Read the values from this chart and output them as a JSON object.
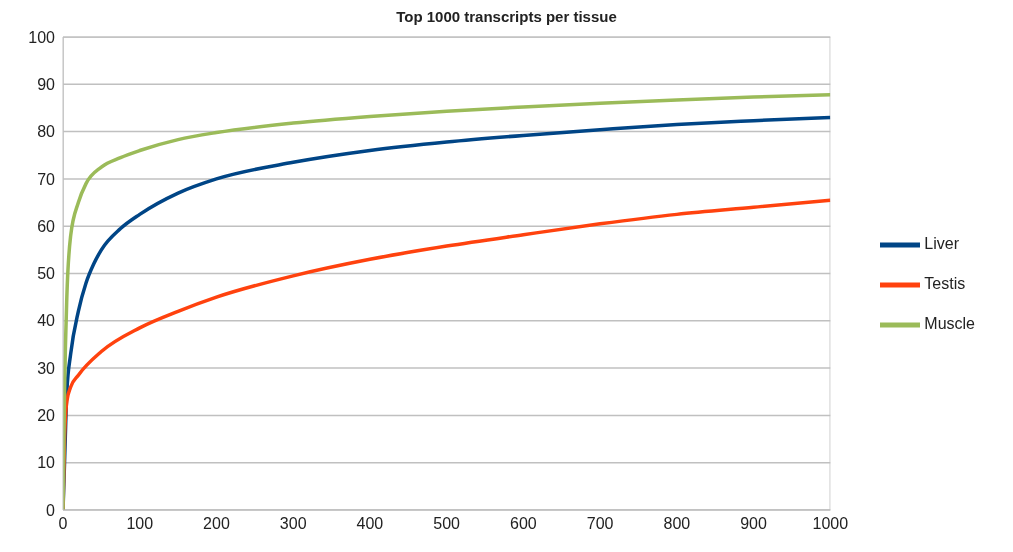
{
  "chart_data": {
    "type": "line",
    "title": "Top 1000 transcripts per tissue",
    "xlim": [
      0,
      1000
    ],
    "xticks": [
      0,
      100,
      200,
      300,
      400,
      500,
      600,
      700,
      800,
      900,
      1000
    ],
    "ylim": [
      0,
      100
    ],
    "yticks": [
      0,
      10,
      20,
      30,
      40,
      50,
      60,
      70,
      80,
      90,
      100
    ],
    "grid": "y",
    "legend": "right",
    "marker": "none",
    "line_style": "solid",
    "series": [
      {
        "name": "Liver",
        "color": "#004586",
        "x": [
          0,
          2,
          5,
          10,
          20,
          30,
          40,
          50,
          75,
          100,
          150,
          200,
          300,
          400,
          500,
          600,
          700,
          800,
          900,
          1000
        ],
        "values": [
          0,
          10,
          25,
          33,
          42,
          48,
          52,
          55,
          59.5,
          62.5,
          67,
          70,
          73.5,
          76,
          77.8,
          79.2,
          80.4,
          81.5,
          82.3,
          83
        ]
      },
      {
        "name": "Testis",
        "color": "#ff420e",
        "x": [
          0,
          2,
          5,
          10,
          20,
          50,
          100,
          150,
          200,
          300,
          400,
          500,
          600,
          700,
          800,
          900,
          1000
        ],
        "values": [
          0,
          15,
          23,
          26,
          28.5,
          33.5,
          38.5,
          42,
          45,
          49.5,
          53,
          55.8,
          58.2,
          60.5,
          62.5,
          64,
          65.5
        ]
      },
      {
        "name": "Muscle",
        "color": "#9bbb59",
        "x": [
          0,
          2,
          5,
          10,
          20,
          30,
          50,
          75,
          100,
          150,
          200,
          300,
          400,
          500,
          600,
          700,
          800,
          900,
          1000
        ],
        "values": [
          0,
          25,
          45,
          58,
          65,
          69,
          72.5,
          74.5,
          76,
          78.3,
          79.8,
          81.8,
          83.2,
          84.3,
          85.2,
          86,
          86.7,
          87.3,
          87.8
        ]
      }
    ]
  }
}
